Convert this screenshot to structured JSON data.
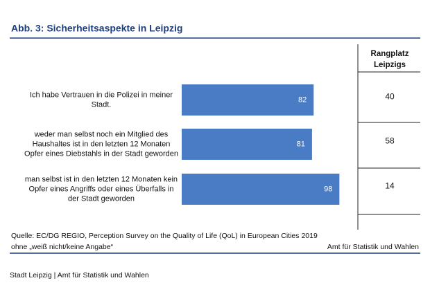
{
  "chart_data": {
    "type": "bar",
    "orientation": "horizontal",
    "title": "Abb. 3: Sicherheitsaspekte in Leipzig",
    "categories": [
      [
        "Ich habe Vertrauen in die Polizei in meiner",
        "Stadt."
      ],
      [
        "weder man selbst noch ein Mitglied des",
        "Haushaltes ist in den letzten 12 Monaten",
        "Opfer eines Diebstahls in der Stadt geworden"
      ],
      [
        "man selbst ist in den letzten 12 Monaten kein",
        "Opfer eines Angriffs oder eines Überfalls in",
        "der Stadt geworden"
      ]
    ],
    "values": [
      82,
      81,
      98
    ],
    "color": "#4a7cc5",
    "rank_header": [
      "Rangplatz",
      "Leipzigs"
    ],
    "ranks": [
      40,
      58,
      14
    ],
    "source": [
      "Quelle: EC/DG REGIO, Perception Survey on the Quality of Life (QoL) in European Cities 2019",
      "ohne „weiß nicht/keine Angabe“"
    ],
    "publisher": "Amt für Statistik und Wahlen"
  },
  "footer": "Stadt Leipzig | Amt für Statistik und Wahlen"
}
